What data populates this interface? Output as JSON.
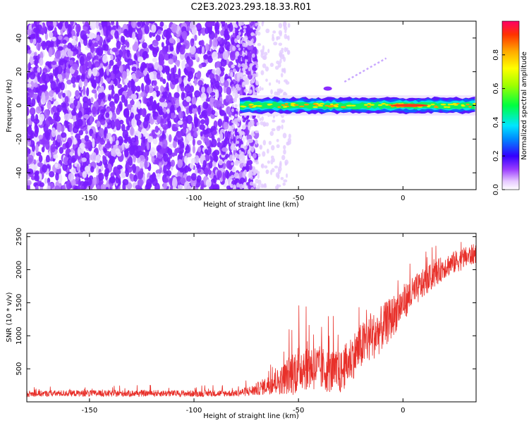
{
  "title": "C2E3.2023.293.18.33.R01",
  "chart_data": [
    {
      "type": "heatmap",
      "xlabel": "Height of straight line (km)",
      "ylabel": "Frequency (Hz)",
      "xlim": [
        -180,
        35
      ],
      "ylim": [
        -50,
        50
      ],
      "x_ticks": [
        -150,
        -100,
        -50,
        0
      ],
      "y_ticks": [
        -40,
        -20,
        0,
        20,
        40
      ],
      "description": "Speckled noise at low amplitude for heights below about -78 km; a narrow high-amplitude band centered near 0 Hz from about -78 km to 35 km, strongest (amplitude ~0.9-1.0) between about -5 and 12 km.",
      "band": {
        "x_start": -78,
        "x_end": 35,
        "center_hz": 0,
        "half_width_hz": 3
      },
      "colorbar": {
        "label": "Normalized spectral amplitude",
        "range": [
          0,
          1
        ],
        "ticks": [
          0.0,
          0.2,
          0.4,
          0.6,
          0.8
        ]
      }
    },
    {
      "type": "line",
      "xlabel": "Height of straight line (km)",
      "ylabel": "SNR (10 * v/v)",
      "xlim": [
        -180,
        35
      ],
      "ylim": [
        0,
        2550
      ],
      "x_ticks": [
        -150,
        -100,
        -50,
        0
      ],
      "y_ticks": [
        500,
        1000,
        1500,
        2000,
        2500
      ],
      "color": "#e8302a",
      "series": [
        {
          "name": "SNR",
          "x": [
            -180,
            -160,
            -140,
            -120,
            -100,
            -80,
            -72,
            -65,
            -58,
            -52,
            -48,
            -42,
            -36,
            -30,
            -24,
            -18,
            -12,
            -6,
            0,
            10,
            20,
            35
          ],
          "base": [
            120,
            130,
            125,
            130,
            125,
            130,
            170,
            250,
            330,
            460,
            560,
            520,
            470,
            430,
            700,
            900,
            1050,
            1250,
            1500,
            1800,
            2050,
            2250
          ],
          "spread": [
            80,
            90,
            90,
            90,
            90,
            90,
            150,
            250,
            400,
            650,
            700,
            650,
            600,
            600,
            650,
            650,
            650,
            600,
            500,
            400,
            330,
            280
          ]
        }
      ]
    }
  ]
}
